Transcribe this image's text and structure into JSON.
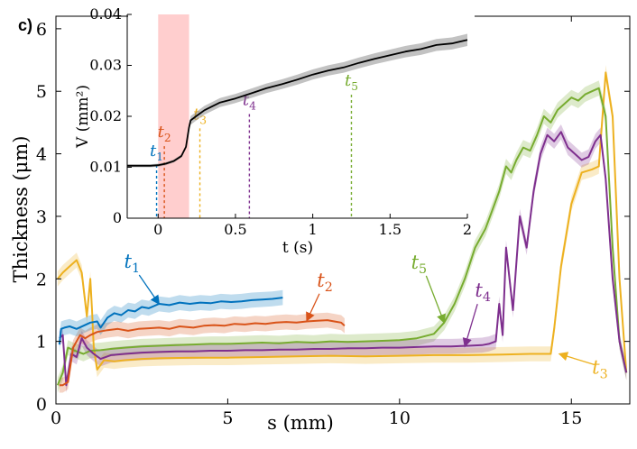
{
  "panel_label": "c)",
  "chart_data": [
    {
      "type": "line",
      "title": "",
      "xlabel": "s (mm)",
      "ylabel": "Thickness (μm)",
      "xlim": [
        0,
        16.7
      ],
      "ylim": [
        0,
        6.2
      ],
      "xticks": [
        0,
        5,
        10,
        15
      ],
      "yticks": [
        0,
        1,
        2,
        3,
        4,
        5,
        6
      ],
      "series": [
        {
          "name": "t1",
          "color": "#0072BD",
          "x": [
            0.1,
            0.15,
            0.25,
            0.4,
            0.6,
            0.8,
            1.0,
            1.2,
            1.3,
            1.5,
            1.7,
            1.9,
            2.1,
            2.3,
            2.5,
            2.7,
            3.0,
            3.3,
            3.6,
            3.9,
            4.2,
            4.5,
            4.8,
            5.1,
            5.4,
            5.7,
            6.0,
            6.3,
            6.6
          ],
          "y": [
            0.95,
            1.2,
            1.22,
            1.24,
            1.2,
            1.25,
            1.3,
            1.32,
            1.22,
            1.38,
            1.45,
            1.42,
            1.5,
            1.48,
            1.55,
            1.53,
            1.6,
            1.58,
            1.62,
            1.6,
            1.62,
            1.61,
            1.64,
            1.63,
            1.64,
            1.66,
            1.67,
            1.68,
            1.7
          ]
        },
        {
          "name": "t2",
          "color": "#D95319",
          "x": [
            0.1,
            0.2,
            0.35,
            0.5,
            0.7,
            0.85,
            1.0,
            1.2,
            1.5,
            1.8,
            2.1,
            2.4,
            2.7,
            3.0,
            3.3,
            3.6,
            4.0,
            4.3,
            4.6,
            4.9,
            5.2,
            5.5,
            5.8,
            6.1,
            6.4,
            6.7,
            7.0,
            7.3,
            7.6,
            7.9,
            8.1,
            8.3,
            8.4
          ],
          "y": [
            0.3,
            0.3,
            0.35,
            0.9,
            1.1,
            1.05,
            1.1,
            1.15,
            1.18,
            1.2,
            1.17,
            1.2,
            1.21,
            1.22,
            1.2,
            1.24,
            1.22,
            1.25,
            1.26,
            1.25,
            1.28,
            1.27,
            1.29,
            1.28,
            1.3,
            1.31,
            1.3,
            1.32,
            1.33,
            1.34,
            1.32,
            1.3,
            1.25
          ]
        },
        {
          "name": "t3",
          "color": "#EDB120",
          "x": [
            0.05,
            0.2,
            0.4,
            0.6,
            0.75,
            0.9,
            1.0,
            1.05,
            1.1,
            1.2,
            1.4,
            1.7,
            2.0,
            2.5,
            3.0,
            4.0,
            5.0,
            6.0,
            7.0,
            8.0,
            9.0,
            10.0,
            11.0,
            12.0,
            13.0,
            13.8,
            14.4,
            14.5,
            14.7,
            15.0,
            15.3,
            15.6,
            15.8,
            16.0,
            16.2,
            16.4,
            16.6
          ],
          "y": [
            2.0,
            2.1,
            2.2,
            2.3,
            2.1,
            1.4,
            2.0,
            1.5,
            0.9,
            0.55,
            0.7,
            0.68,
            0.7,
            0.72,
            0.73,
            0.74,
            0.74,
            0.75,
            0.76,
            0.77,
            0.76,
            0.77,
            0.78,
            0.78,
            0.79,
            0.8,
            0.8,
            1.2,
            2.2,
            3.2,
            3.7,
            3.75,
            3.8,
            5.3,
            4.6,
            2.0,
            0.5
          ]
        },
        {
          "name": "t4",
          "color": "#7E2F8E",
          "x": [
            0.1,
            0.2,
            0.3,
            0.45,
            0.6,
            0.75,
            0.9,
            1.1,
            1.3,
            1.6,
            2.0,
            2.5,
            3.0,
            3.5,
            4.0,
            4.5,
            5.0,
            5.5,
            6.0,
            6.5,
            7.0,
            7.5,
            8.0,
            8.5,
            9.0,
            9.5,
            10.0,
            10.5,
            11.0,
            11.5,
            12.0,
            12.4,
            12.6,
            12.8,
            12.9,
            13.0,
            13.1,
            13.3,
            13.5,
            13.7,
            13.9,
            14.1,
            14.3,
            14.5,
            14.7,
            14.9,
            15.1,
            15.3,
            15.5,
            15.7,
            15.85,
            16.0,
            16.2,
            16.4,
            16.6
          ],
          "y": [
            1.05,
            1.1,
            0.3,
            0.8,
            0.75,
            1.05,
            0.9,
            0.8,
            0.72,
            0.78,
            0.8,
            0.82,
            0.83,
            0.84,
            0.84,
            0.85,
            0.85,
            0.86,
            0.86,
            0.87,
            0.87,
            0.88,
            0.88,
            0.89,
            0.89,
            0.9,
            0.9,
            0.91,
            0.92,
            0.92,
            0.93,
            0.94,
            0.96,
            1.0,
            1.6,
            1.1,
            2.5,
            1.5,
            3.0,
            2.5,
            3.4,
            4.0,
            4.3,
            4.2,
            4.35,
            4.1,
            4.0,
            3.9,
            3.95,
            4.2,
            4.3,
            3.6,
            2.0,
            1.0,
            0.5
          ]
        },
        {
          "name": "t5",
          "color": "#77AC30",
          "x": [
            0.05,
            0.2,
            0.35,
            0.55,
            0.8,
            1.0,
            1.3,
            1.6,
            2.0,
            2.5,
            3.0,
            3.5,
            4.0,
            4.5,
            5.0,
            5.5,
            6.0,
            6.5,
            7.0,
            7.5,
            8.0,
            8.5,
            9.0,
            9.5,
            10.0,
            10.5,
            11.0,
            11.3,
            11.6,
            11.9,
            12.2,
            12.5,
            12.7,
            12.9,
            13.0,
            13.1,
            13.25,
            13.4,
            13.6,
            13.8,
            14.0,
            14.2,
            14.4,
            14.6,
            14.8,
            15.0,
            15.2,
            15.4,
            15.6,
            15.8,
            16.0,
            16.2,
            16.4,
            16.6
          ],
          "y": [
            0.3,
            0.5,
            0.9,
            0.85,
            0.8,
            0.85,
            0.86,
            0.88,
            0.9,
            0.92,
            0.93,
            0.94,
            0.95,
            0.96,
            0.96,
            0.97,
            0.98,
            0.97,
            0.99,
            0.98,
            1.0,
            0.99,
            1.0,
            1.01,
            1.02,
            1.05,
            1.12,
            1.3,
            1.6,
            2.0,
            2.5,
            2.8,
            3.1,
            3.4,
            3.6,
            3.8,
            3.7,
            3.9,
            4.1,
            4.05,
            4.3,
            4.6,
            4.5,
            4.7,
            4.8,
            4.9,
            4.85,
            4.95,
            5.0,
            5.05,
            4.6,
            2.5,
            1.0,
            0.5
          ]
        }
      ],
      "annotations": [
        {
          "label": "t",
          "sub": "1",
          "color": "#0072BD",
          "x": 3.0,
          "y": 1.6
        },
        {
          "label": "t",
          "sub": "2",
          "color": "#D95319",
          "x": 7.3,
          "y": 1.33
        },
        {
          "label": "t",
          "sub": "5",
          "color": "#77AC30",
          "x": 11.3,
          "y": 1.3
        },
        {
          "label": "t",
          "sub": "4",
          "color": "#7E2F8E",
          "x": 11.9,
          "y": 0.92
        },
        {
          "label": "t",
          "sub": "3",
          "color": "#EDB120",
          "x": 14.65,
          "y": 0.8
        }
      ]
    },
    {
      "type": "line",
      "title": "",
      "xlabel": "t (s)",
      "ylabel": "V (mm²)",
      "xlim": [
        -0.2,
        2.0
      ],
      "ylim": [
        0,
        0.04
      ],
      "xticks": [
        0,
        0.5,
        1,
        1.5,
        2
      ],
      "xtick_labels": [
        "0",
        "0.5",
        "1",
        "1.5",
        "2"
      ],
      "yticks": [
        0,
        0.01,
        0.02,
        0.03,
        0.04
      ],
      "ytick_labels": [
        "0",
        "0.01",
        "0.02",
        "0.03",
        "0.04"
      ],
      "shaded_interval": {
        "x0": 0.0,
        "x1": 0.2,
        "color": "#FFB3B3"
      },
      "series": [
        {
          "name": "V",
          "color": "#000000",
          "x": [
            -0.2,
            -0.1,
            -0.05,
            0.0,
            0.05,
            0.1,
            0.15,
            0.18,
            0.2,
            0.21,
            0.25,
            0.3,
            0.4,
            0.5,
            0.6,
            0.7,
            0.8,
            0.9,
            1.0,
            1.1,
            1.2,
            1.3,
            1.4,
            1.5,
            1.6,
            1.7,
            1.8,
            1.9,
            2.0
          ],
          "y": [
            0.0103,
            0.0103,
            0.0103,
            0.0104,
            0.0107,
            0.0112,
            0.0122,
            0.014,
            0.0178,
            0.0192,
            0.0201,
            0.0212,
            0.0227,
            0.0235,
            0.0245,
            0.0255,
            0.0263,
            0.0272,
            0.0282,
            0.029,
            0.0296,
            0.0305,
            0.0313,
            0.032,
            0.0327,
            0.0332,
            0.034,
            0.0343,
            0.035
          ]
        }
      ],
      "markers": [
        {
          "label": "t",
          "sub": "1",
          "x": -0.01,
          "color": "#0072BD"
        },
        {
          "label": "t",
          "sub": "2",
          "x": 0.04,
          "color": "#D95319"
        },
        {
          "label": "t",
          "sub": "3",
          "x": 0.27,
          "color": "#EDB120"
        },
        {
          "label": "t",
          "sub": "4",
          "x": 0.59,
          "color": "#7E2F8E"
        },
        {
          "label": "t",
          "sub": "5",
          "x": 1.25,
          "color": "#77AC30"
        }
      ]
    }
  ]
}
